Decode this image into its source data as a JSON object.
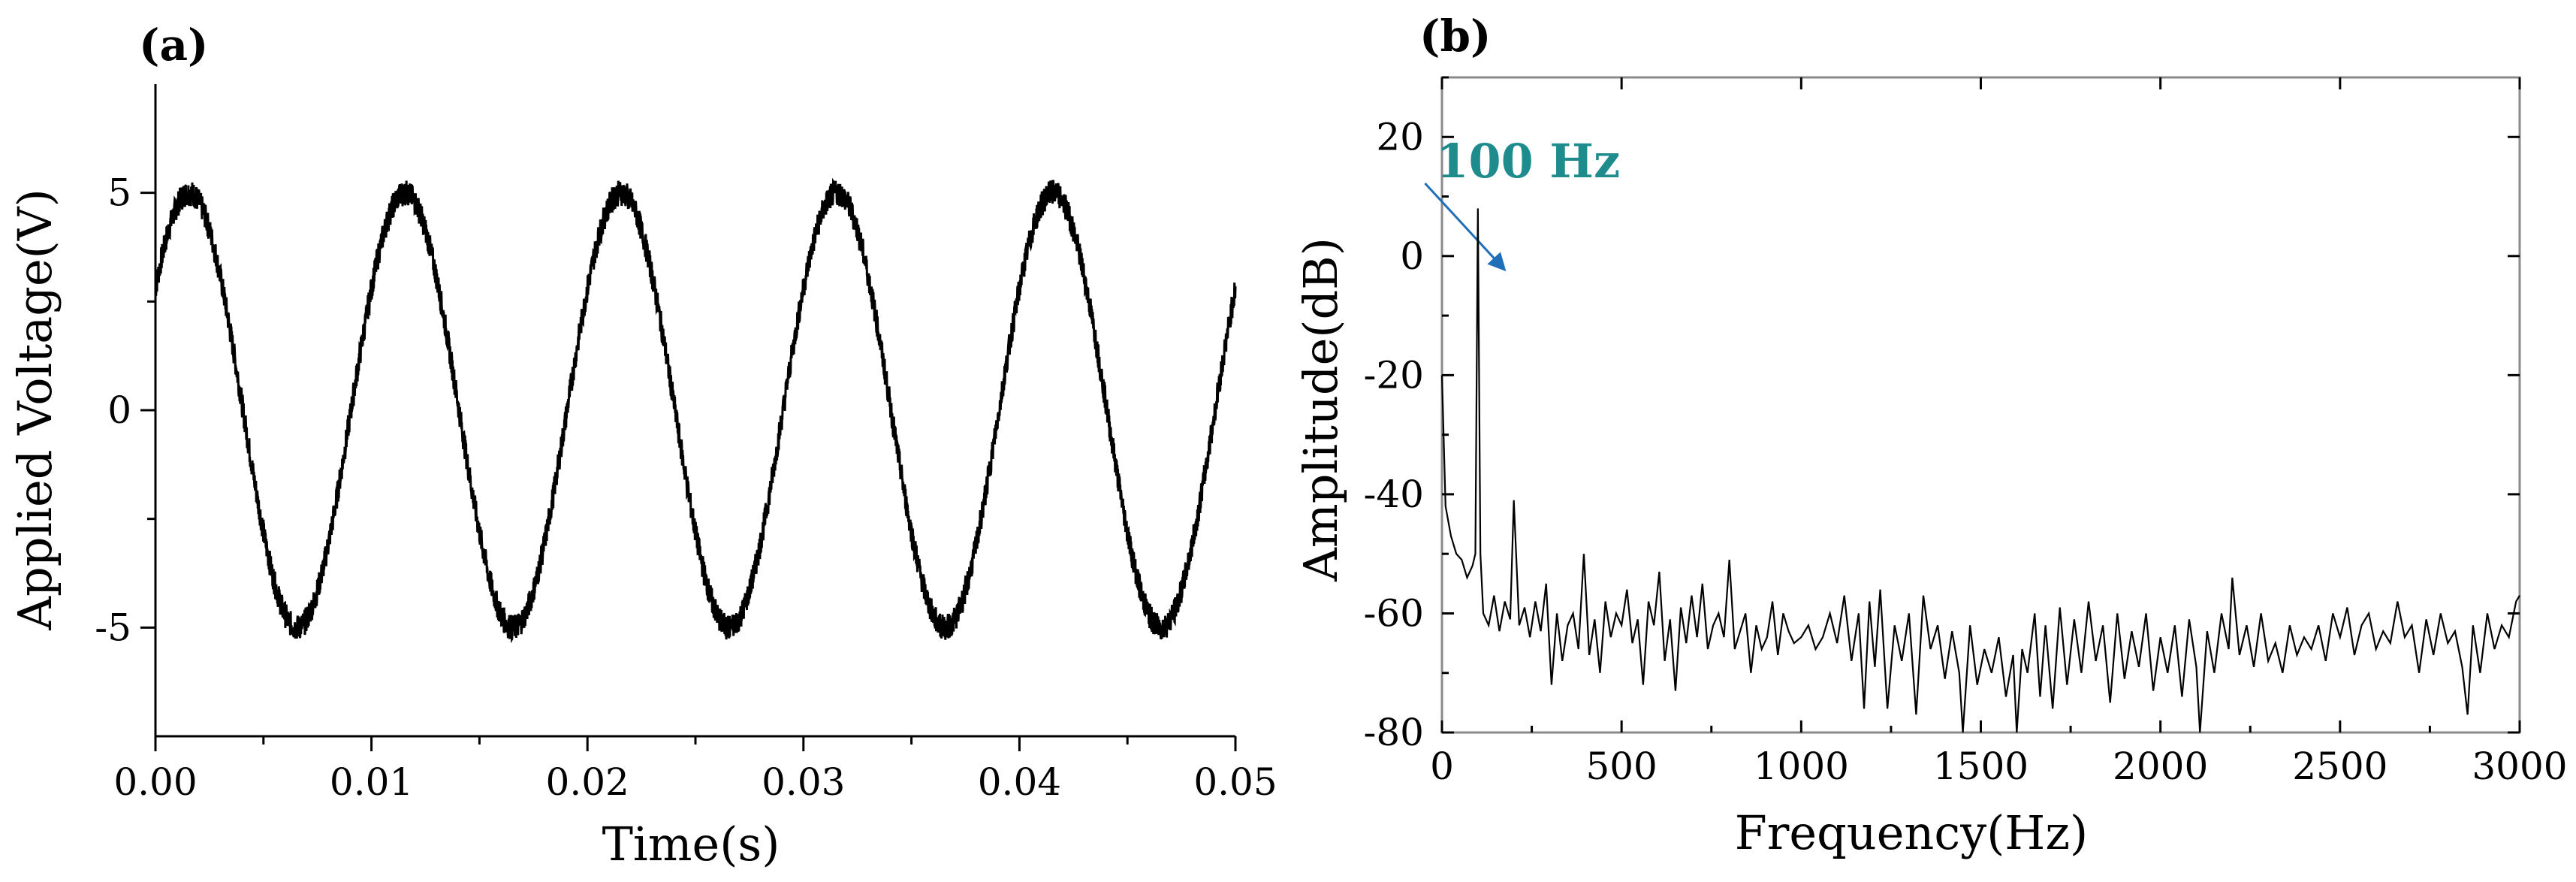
{
  "chart_data": [
    {
      "panel": "(a)",
      "type": "line",
      "title": "",
      "xlabel": "Time(s)",
      "ylabel": "Applied Voltage(V)",
      "xlim": [
        0,
        0.05
      ],
      "ylim": [
        -7.5,
        7.5
      ],
      "xticks": [
        0.0,
        0.01,
        0.02,
        0.03,
        0.04,
        0.05
      ],
      "xtick_labels": [
        "0.00",
        "0.01",
        "0.02",
        "0.03",
        "0.04",
        "0.05"
      ],
      "yticks": [
        5,
        0,
        -5
      ],
      "ytick_labels": [
        "5",
        "0",
        "-5"
      ],
      "series": [
        {
          "name": "applied voltage",
          "waveform": "sine",
          "amplitude": 5,
          "frequency_hz": 100,
          "x_start": 0,
          "x_end": 0.05,
          "value_at_x_start": 2.8,
          "noise_amplitude": 0.3,
          "color": "#000000"
        }
      ]
    },
    {
      "panel": "(b)",
      "type": "line",
      "title": "",
      "xlabel": "Frequency(Hz)",
      "ylabel": "Amplitude(dB)",
      "xlim": [
        0,
        3000
      ],
      "ylim": [
        -80,
        30
      ],
      "xticks": [
        0,
        500,
        1000,
        1500,
        2000,
        2500,
        3000
      ],
      "xtick_labels": [
        "0",
        "500",
        "1000",
        "1500",
        "2000",
        "2500",
        "3000"
      ],
      "yticks": [
        20,
        0,
        -20,
        -40,
        -60,
        -80
      ],
      "ytick_labels": [
        "20",
        "0",
        "-20",
        "-40",
        "-60",
        "-80"
      ],
      "series": [
        {
          "name": "spectrum",
          "color": "#000000",
          "points": [
            [
              0,
              -20
            ],
            [
              10,
              -42
            ],
            [
              25,
              -47
            ],
            [
              40,
              -50
            ],
            [
              55,
              -51
            ],
            [
              70,
              -54
            ],
            [
              85,
              -52
            ],
            [
              93,
              -50
            ],
            [
              100,
              8
            ],
            [
              107,
              -50
            ],
            [
              115,
              -60
            ],
            [
              130,
              -62
            ],
            [
              145,
              -57
            ],
            [
              160,
              -63
            ],
            [
              175,
              -58
            ],
            [
              190,
              -61
            ],
            [
              200,
              -41
            ],
            [
              215,
              -62
            ],
            [
              230,
              -59
            ],
            [
              245,
              -64
            ],
            [
              260,
              -58
            ],
            [
              275,
              -63
            ],
            [
              290,
              -55
            ],
            [
              305,
              -72
            ],
            [
              320,
              -60
            ],
            [
              335,
              -68
            ],
            [
              350,
              -62
            ],
            [
              365,
              -60
            ],
            [
              380,
              -66
            ],
            [
              395,
              -50
            ],
            [
              410,
              -67
            ],
            [
              425,
              -61
            ],
            [
              440,
              -70
            ],
            [
              455,
              -58
            ],
            [
              470,
              -64
            ],
            [
              485,
              -60
            ],
            [
              500,
              -62
            ],
            [
              515,
              -56
            ],
            [
              530,
              -65
            ],
            [
              545,
              -61
            ],
            [
              560,
              -72
            ],
            [
              575,
              -58
            ],
            [
              590,
              -62
            ],
            [
              605,
              -53
            ],
            [
              620,
              -68
            ],
            [
              635,
              -61
            ],
            [
              650,
              -73
            ],
            [
              665,
              -59
            ],
            [
              680,
              -65
            ],
            [
              695,
              -57
            ],
            [
              710,
              -64
            ],
            [
              725,
              -55
            ],
            [
              740,
              -66
            ],
            [
              755,
              -62
            ],
            [
              770,
              -60
            ],
            [
              785,
              -64
            ],
            [
              800,
              -51
            ],
            [
              815,
              -66
            ],
            [
              830,
              -63
            ],
            [
              845,
              -60
            ],
            [
              860,
              -70
            ],
            [
              875,
              -62
            ],
            [
              890,
              -66
            ],
            [
              905,
              -64
            ],
            [
              920,
              -58
            ],
            [
              935,
              -67
            ],
            [
              950,
              -60
            ],
            [
              965,
              -63
            ],
            [
              980,
              -65
            ],
            [
              1000,
              -64
            ],
            [
              1020,
              -62
            ],
            [
              1040,
              -66
            ],
            [
              1060,
              -64
            ],
            [
              1080,
              -60
            ],
            [
              1100,
              -65
            ],
            [
              1120,
              -57
            ],
            [
              1140,
              -68
            ],
            [
              1160,
              -60
            ],
            [
              1175,
              -76
            ],
            [
              1190,
              -58
            ],
            [
              1205,
              -69
            ],
            [
              1220,
              -56
            ],
            [
              1240,
              -76
            ],
            [
              1260,
              -62
            ],
            [
              1280,
              -68
            ],
            [
              1300,
              -60
            ],
            [
              1320,
              -77
            ],
            [
              1340,
              -57
            ],
            [
              1360,
              -66
            ],
            [
              1380,
              -62
            ],
            [
              1400,
              -71
            ],
            [
              1420,
              -63
            ],
            [
              1440,
              -70
            ],
            [
              1450,
              -80
            ],
            [
              1470,
              -62
            ],
            [
              1490,
              -72
            ],
            [
              1510,
              -66
            ],
            [
              1530,
              -70
            ],
            [
              1550,
              -64
            ],
            [
              1570,
              -74
            ],
            [
              1590,
              -67
            ],
            [
              1600,
              -80
            ],
            [
              1615,
              -66
            ],
            [
              1630,
              -70
            ],
            [
              1650,
              -60
            ],
            [
              1665,
              -74
            ],
            [
              1680,
              -62
            ],
            [
              1700,
              -76
            ],
            [
              1720,
              -59
            ],
            [
              1740,
              -72
            ],
            [
              1760,
              -61
            ],
            [
              1780,
              -70
            ],
            [
              1800,
              -58
            ],
            [
              1820,
              -68
            ],
            [
              1840,
              -62
            ],
            [
              1860,
              -75
            ],
            [
              1880,
              -60
            ],
            [
              1900,
              -71
            ],
            [
              1920,
              -63
            ],
            [
              1940,
              -69
            ],
            [
              1960,
              -60
            ],
            [
              1980,
              -73
            ],
            [
              2000,
              -64
            ],
            [
              2020,
              -70
            ],
            [
              2040,
              -62
            ],
            [
              2060,
              -74
            ],
            [
              2080,
              -61
            ],
            [
              2100,
              -69
            ],
            [
              2110,
              -80
            ],
            [
              2130,
              -63
            ],
            [
              2150,
              -70
            ],
            [
              2170,
              -60
            ],
            [
              2190,
              -66
            ],
            [
              2200,
              -54
            ],
            [
              2220,
              -67
            ],
            [
              2240,
              -62
            ],
            [
              2260,
              -69
            ],
            [
              2280,
              -60
            ],
            [
              2300,
              -68
            ],
            [
              2320,
              -65
            ],
            [
              2340,
              -70
            ],
            [
              2360,
              -62
            ],
            [
              2380,
              -67
            ],
            [
              2400,
              -64
            ],
            [
              2420,
              -66
            ],
            [
              2440,
              -62
            ],
            [
              2460,
              -68
            ],
            [
              2480,
              -60
            ],
            [
              2500,
              -64
            ],
            [
              2520,
              -59
            ],
            [
              2540,
              -67
            ],
            [
              2560,
              -62
            ],
            [
              2580,
              -60
            ],
            [
              2600,
              -66
            ],
            [
              2620,
              -63
            ],
            [
              2640,
              -65
            ],
            [
              2660,
              -58
            ],
            [
              2680,
              -64
            ],
            [
              2700,
              -62
            ],
            [
              2720,
              -70
            ],
            [
              2740,
              -61
            ],
            [
              2760,
              -67
            ],
            [
              2780,
              -60
            ],
            [
              2800,
              -65
            ],
            [
              2820,
              -63
            ],
            [
              2840,
              -69
            ],
            [
              2855,
              -77
            ],
            [
              2870,
              -62
            ],
            [
              2890,
              -70
            ],
            [
              2910,
              -60
            ],
            [
              2930,
              -66
            ],
            [
              2950,
              -62
            ],
            [
              2970,
              -64
            ],
            [
              2990,
              -58
            ],
            [
              3000,
              -57
            ]
          ]
        }
      ],
      "annotations": [
        {
          "text": "100 Hz",
          "color": "#1e8c8c",
          "arrow_color": "#1f6fb8",
          "arrow_tip": [
            170,
            -2
          ],
          "text_anchor_point": [
            350,
            16
          ]
        }
      ]
    }
  ]
}
